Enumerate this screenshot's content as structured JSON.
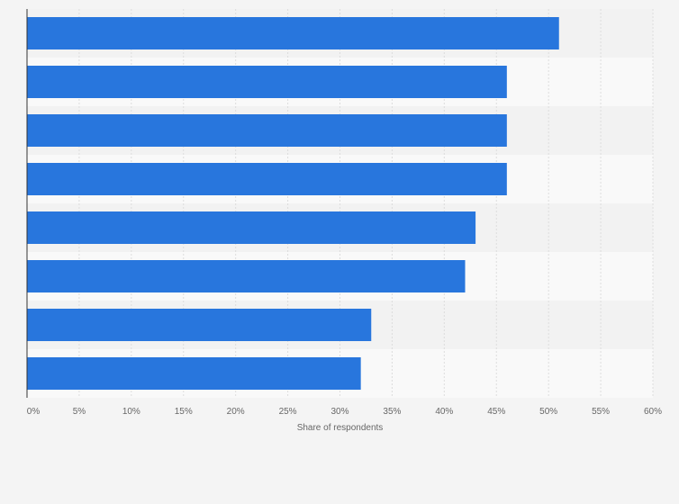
{
  "chart_data": {
    "type": "bar",
    "orientation": "horizontal",
    "title": "",
    "xlabel": "Share of respondents",
    "ylabel": "",
    "categories": [
      "",
      "",
      "",
      "",
      "",
      "",
      "",
      ""
    ],
    "values": [
      51,
      46,
      46,
      46,
      43,
      42,
      33,
      32
    ],
    "xlim": [
      0,
      60
    ],
    "x_ticks": [
      0,
      5,
      10,
      15,
      20,
      25,
      30,
      35,
      40,
      45,
      50,
      55,
      60
    ],
    "x_tick_labels": [
      "0%",
      "5%",
      "10%",
      "15%",
      "20%",
      "25%",
      "30%",
      "35%",
      "40%",
      "45%",
      "50%",
      "55%",
      "60%"
    ],
    "value_unit": "%",
    "grid": true,
    "legend": "none",
    "colors": {
      "bar": "#2876dd",
      "background": "#f4f4f4",
      "band_light": "#f9f9f9",
      "band_dark": "#f2f2f2",
      "grid": "#dddddd",
      "axis": "#333333",
      "text": "#666666"
    }
  }
}
